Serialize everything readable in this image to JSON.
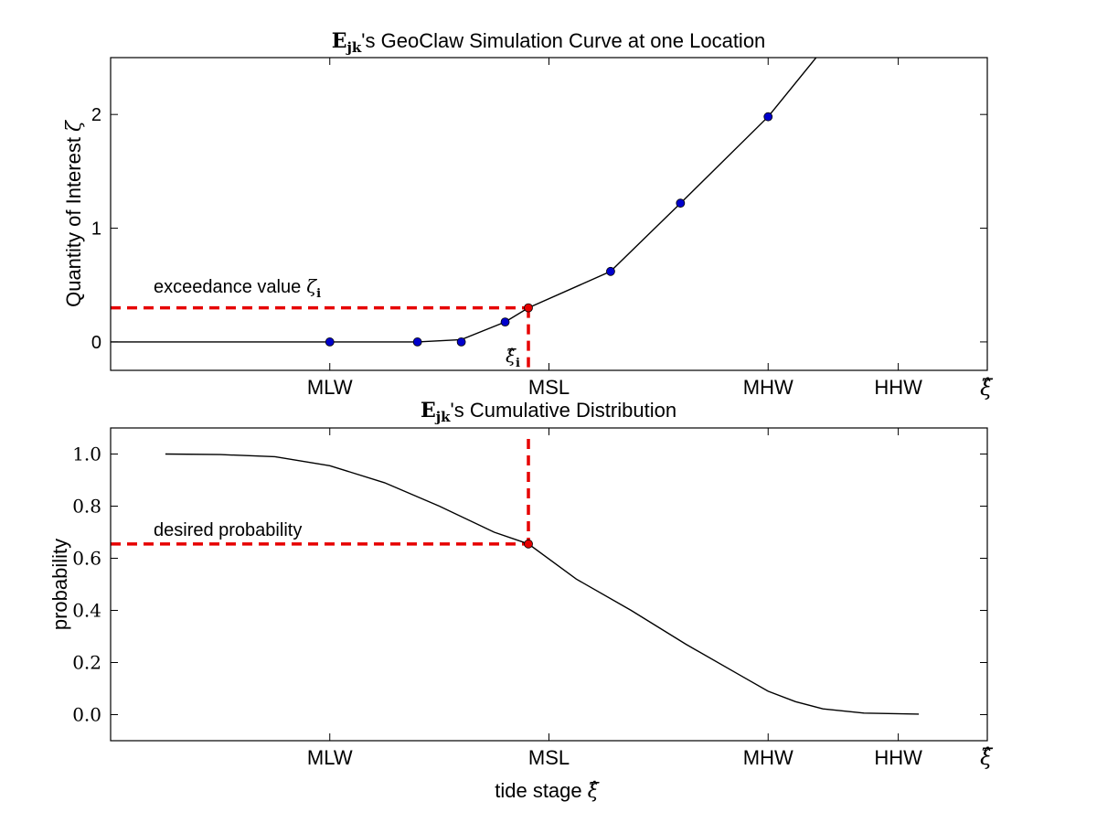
{
  "chart_data": [
    {
      "type": "line",
      "title_prefix": "E",
      "title_prefix_sub": "jk",
      "title": "'s GeoClaw Simulation Curve at one Location",
      "ylabel": "Quantity of Interest",
      "ylabel_symbol": "ζ",
      "x_end_symbol": "ξ̂",
      "xlim": [
        0,
        6.4
      ],
      "ylim": [
        -0.25,
        2.5
      ],
      "yticks": [
        0,
        1,
        2
      ],
      "yticklabels": [
        "0",
        "1",
        "2"
      ],
      "xticks": [
        1.6,
        3.2,
        4.8,
        5.75
      ],
      "xticklabels": [
        "MLW",
        "MSL",
        "MHW",
        "HHW"
      ],
      "grid": false,
      "series": [
        {
          "line_x": [
            0,
            1.6,
            2.24,
            2.56,
            2.88,
            3.05,
            3.65,
            4.16,
            4.8,
            5.15
          ],
          "line_y": [
            0,
            0,
            0,
            0.02,
            0.175,
            0.3,
            0.62,
            1.22,
            1.98,
            2.5
          ],
          "color": "#000000"
        }
      ],
      "points": {
        "x": [
          1.6,
          2.24,
          2.56,
          2.88,
          3.65,
          4.16,
          4.8
        ],
        "y": [
          0,
          0,
          0,
          0.175,
          0.62,
          1.22,
          1.98
        ],
        "color": "#0000cc"
      },
      "highlight_point": {
        "x": 3.05,
        "y": 0.3,
        "color": "#e60000"
      },
      "dashed_horizontal_y": 0.3,
      "dashed_vertical_x": 3.05,
      "dashed_color": "#e60000",
      "annotations": {
        "exceedance_text": "exceedance value",
        "exceedance_symbol": "ζ",
        "exceedance_sub": "i",
        "xi_symbol": "ξ̂",
        "xi_sub": "i"
      }
    },
    {
      "type": "line",
      "title_prefix": "E",
      "title_prefix_sub": "jk",
      "title": "'s Cumulative Distribution",
      "ylabel": "probability",
      "xlabel": "tide stage",
      "xlabel_symbol": "ξ̂",
      "x_end_symbol": "ξ̂",
      "xlim": [
        0,
        6.4
      ],
      "ylim": [
        -0.1,
        1.1
      ],
      "yticks": [
        0.0,
        0.2,
        0.4,
        0.6,
        0.8,
        1.0
      ],
      "yticklabels": [
        "0.0",
        "0.2",
        "0.4",
        "0.6",
        "0.8",
        "1.0"
      ],
      "xticks": [
        1.6,
        3.2,
        4.8,
        5.75
      ],
      "xticklabels": [
        "MLW",
        "MSL",
        "MHW",
        "HHW"
      ],
      "grid": false,
      "series": [
        {
          "x": [
            0.4,
            0.8,
            1.2,
            1.6,
            2.0,
            2.4,
            2.8,
            3.05,
            3.4,
            3.8,
            4.2,
            4.6,
            4.8,
            5.0,
            5.2,
            5.5,
            5.9
          ],
          "y": [
            1.0,
            0.998,
            0.99,
            0.955,
            0.89,
            0.8,
            0.7,
            0.655,
            0.52,
            0.4,
            0.27,
            0.15,
            0.09,
            0.05,
            0.022,
            0.006,
            0.002
          ],
          "color": "#000000"
        }
      ],
      "highlight_point": {
        "x": 3.05,
        "y": 0.655,
        "color": "#e60000"
      },
      "dashed_horizontal_y": 0.655,
      "dashed_vertical_x": 3.05,
      "dashed_color": "#e60000",
      "annotations": {
        "desired_text": "desired probability"
      }
    }
  ]
}
